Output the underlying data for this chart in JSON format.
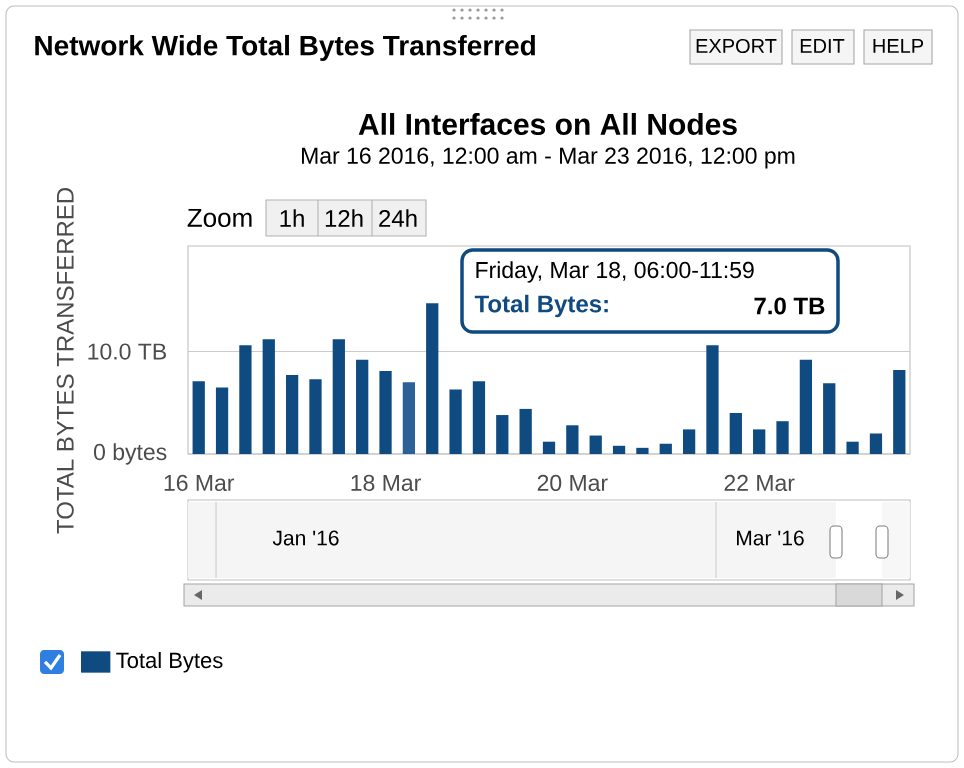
{
  "chart_data": {
    "type": "bar",
    "title": "Network Wide Total Bytes Transferred",
    "subtitle": "All Interfaces on All Nodes",
    "ylabel": "TOTAL BYTES TRANSFERRED",
    "x": [
      "2016-03-16T00:00",
      "2016-03-16T06:00",
      "2016-03-16T12:00",
      "2016-03-16T18:00",
      "2016-03-17T00:00",
      "2016-03-17T06:00",
      "2016-03-17T12:00",
      "2016-03-17T18:00",
      "2016-03-18T00:00",
      "2016-03-18T06:00",
      "2016-03-18T12:00",
      "2016-03-18T18:00",
      "2016-03-19T00:00",
      "2016-03-19T06:00",
      "2016-03-19T12:00",
      "2016-03-19T18:00",
      "2016-03-20T00:00",
      "2016-03-20T06:00",
      "2016-03-20T12:00",
      "2016-03-20T18:00",
      "2016-03-21T00:00",
      "2016-03-21T06:00",
      "2016-03-21T12:00",
      "2016-03-21T18:00",
      "2016-03-22T00:00",
      "2016-03-22T06:00",
      "2016-03-22T12:00",
      "2016-03-22T18:00",
      "2016-03-23T00:00",
      "2016-03-23T06:00",
      "2016-03-23T12:00"
    ],
    "series": [
      {
        "name": "Total Bytes",
        "color": "#0f4a80",
        "values": [
          7.1,
          6.5,
          10.6,
          11.2,
          7.7,
          7.3,
          11.2,
          9.2,
          8.1,
          7.0,
          14.7,
          6.3,
          7.1,
          3.8,
          4.4,
          1.2,
          2.8,
          1.8,
          0.8,
          0.6,
          1.0,
          2.4,
          10.6,
          4.0,
          2.4,
          3.2,
          9.2,
          6.9,
          1.2,
          2.0,
          8.2
        ],
        "colors": [
          "#0f4a80",
          "#0f4a80",
          "#0f4a80",
          "#0f4a80",
          "#0f4a80",
          "#0f4a80",
          "#0f4a80",
          "#0f4a80",
          "#0f4a80",
          "#2b6196",
          "#0f4a80",
          "#0f4a80",
          "#0f4a80",
          "#0f4a80",
          "#0f4a80",
          "#0f4a80",
          "#0f4a80",
          "#0f4a80",
          "#0f4a80",
          "#0f4a80",
          "#0f4a80",
          "#0f4a80",
          "#0f4a80",
          "#0f4a80",
          "#0f4a80",
          "#0f4a80",
          "#0f4a80",
          "#0f4a80",
          "#0f4a80",
          "#0f4a80",
          "#0f4a80"
        ]
      }
    ],
    "xlim": [
      "2016-03-15T21:15",
      "2016-03-23T14:45"
    ],
    "xticks": [
      {
        "value": "2016-03-16",
        "label": "16 Mar"
      },
      {
        "value": "2016-03-18",
        "label": "18 Mar"
      },
      {
        "value": "2016-03-20",
        "label": "20 Mar"
      },
      {
        "value": "2016-03-22",
        "label": "22 Mar"
      }
    ],
    "ylim": [
      0,
      20.3
    ],
    "yticks": [
      {
        "value": 0,
        "label": "0 bytes"
      },
      {
        "value": 10,
        "label": "10.0 TB"
      }
    ],
    "grid": "y",
    "legend": "bottom left",
    "annotations": [
      "Mar 16 2016, 12:00 am - Mar 23 2016, 12:00 pm",
      "Friday, Mar 18, 06:00-11:59",
      "Total Bytes:",
      "7.0 TB",
      "EXPORT",
      "EDIT",
      "HELP",
      "Zoom",
      "1h",
      "12h",
      "24h",
      "Jan '16",
      "Mar '16"
    ]
  }
}
